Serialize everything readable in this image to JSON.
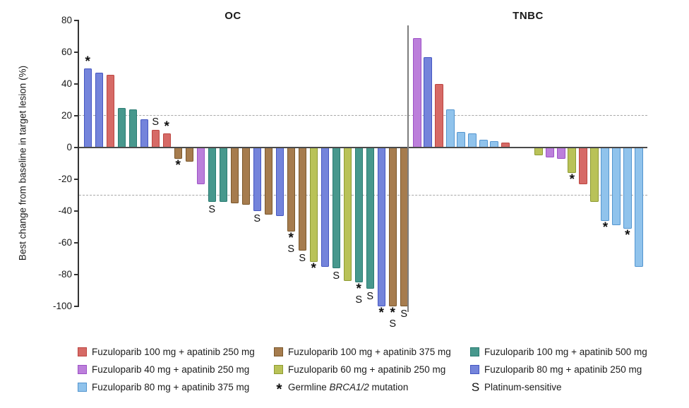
{
  "chart_data": {
    "type": "bar",
    "ylabel": "Best change from baseline in target lesion (%)",
    "ylim": [
      -100,
      80
    ],
    "yticks": [
      80,
      60,
      40,
      20,
      0,
      -20,
      -40,
      -60,
      -80,
      -100
    ],
    "reference_lines_pct": [
      20,
      -30
    ],
    "grid": false,
    "legend_position": "bottom",
    "palette": {
      "red": {
        "fill": "#D66A66",
        "stroke": "#BC4540"
      },
      "brown": {
        "fill": "#A67C4E",
        "stroke": "#7A572B"
      },
      "teal": {
        "fill": "#47988D",
        "stroke": "#2A7C72"
      },
      "orchid": {
        "fill": "#BC7FDB",
        "stroke": "#9D52C6"
      },
      "olive": {
        "fill": "#B9C258",
        "stroke": "#8E9B33"
      },
      "slateblue": {
        "fill": "#7484DB",
        "stroke": "#4456C1"
      },
      "lightblue": {
        "fill": "#90C3EC",
        "stroke": "#5395CF"
      }
    },
    "series_labels": {
      "red": "Fuzuloparib 100 mg + apatinib 250 mg",
      "brown": "Fuzuloparib 100 mg + apatinib 375 mg",
      "teal": "Fuzuloparib 100 mg + apatinib 500 mg",
      "orchid": "Fuzuloparib 40 mg + apatinib 250 mg",
      "olive": "Fuzuloparib 60 mg + apatinib 250 mg",
      "slateblue": "Fuzuloparib 80 mg + apatinib 250 mg",
      "lightblue": "Fuzuloparib 80 mg + apatinib 375 mg"
    },
    "marker_legend": {
      "asterisk_symbol": "*",
      "asterisk_pre": "Germline ",
      "asterisk_italic": "BRCA1/2",
      "asterisk_post": " mutation",
      "s_symbol": "S",
      "s_label": "Platinum-sensitive"
    },
    "legend_rows": [
      [
        "red",
        "brown",
        "teal"
      ],
      [
        "orchid",
        "olive",
        "slateblue"
      ],
      [
        "lightblue",
        "asterisk",
        "s"
      ]
    ],
    "groups": [
      {
        "name": "OC",
        "bars": [
          {
            "value": 50,
            "color": "slateblue",
            "markers": [
              "*"
            ]
          },
          {
            "value": 47,
            "color": "slateblue"
          },
          {
            "value": 46,
            "color": "red"
          },
          {
            "value": 25,
            "color": "teal"
          },
          {
            "value": 24,
            "color": "teal"
          },
          {
            "value": 18,
            "color": "slateblue"
          },
          {
            "value": 11,
            "color": "red",
            "markers": [
              "S"
            ]
          },
          {
            "value": 9,
            "color": "red",
            "markers": [
              "*"
            ]
          },
          {
            "value": -7,
            "color": "brown",
            "markers": [
              "*"
            ]
          },
          {
            "value": -9,
            "color": "brown"
          },
          {
            "value": -23,
            "color": "orchid"
          },
          {
            "value": -34,
            "color": "teal",
            "markers": [
              "S"
            ]
          },
          {
            "value": -34,
            "color": "teal"
          },
          {
            "value": -35,
            "color": "brown"
          },
          {
            "value": -36,
            "color": "brown"
          },
          {
            "value": -40,
            "color": "slateblue",
            "markers": [
              "S"
            ]
          },
          {
            "value": -42,
            "color": "brown"
          },
          {
            "value": -43,
            "color": "slateblue"
          },
          {
            "value": -53,
            "color": "brown",
            "markers": [
              "*",
              "S"
            ]
          },
          {
            "value": -65,
            "color": "brown",
            "markers": [
              "S"
            ]
          },
          {
            "value": -72,
            "color": "olive",
            "markers": [
              "*"
            ]
          },
          {
            "value": -75,
            "color": "slateblue"
          },
          {
            "value": -76,
            "color": "teal",
            "markers": [
              "S"
            ]
          },
          {
            "value": -84,
            "color": "olive"
          },
          {
            "value": -85,
            "color": "teal",
            "markers": [
              "*",
              "S"
            ]
          },
          {
            "value": -89,
            "color": "teal",
            "markers": [
              "S"
            ]
          },
          {
            "value": -100,
            "color": "slateblue",
            "markers": [
              "*"
            ]
          },
          {
            "value": -100,
            "color": "brown",
            "markers": [
              "*",
              "S"
            ]
          },
          {
            "value": -100,
            "color": "brown",
            "markers": [
              "S"
            ]
          }
        ]
      },
      {
        "name": "TNBC",
        "bars": [
          {
            "value": 69,
            "color": "orchid"
          },
          {
            "value": 57,
            "color": "slateblue"
          },
          {
            "value": 40,
            "color": "red"
          },
          {
            "value": 24,
            "color": "lightblue"
          },
          {
            "value": 10,
            "color": "lightblue"
          },
          {
            "value": 9,
            "color": "lightblue"
          },
          {
            "value": 5,
            "color": "lightblue"
          },
          {
            "value": 4,
            "color": "lightblue"
          },
          {
            "value": 3,
            "color": "red"
          },
          {
            "value": 0,
            "spacer": true
          },
          {
            "value": 0,
            "spacer": true
          },
          {
            "value": -5,
            "color": "olive"
          },
          {
            "value": -6,
            "color": "orchid"
          },
          {
            "value": -7,
            "color": "orchid"
          },
          {
            "value": -16,
            "color": "olive",
            "markers": [
              "*"
            ]
          },
          {
            "value": -23,
            "color": "red"
          },
          {
            "value": -34,
            "color": "olive"
          },
          {
            "value": -46,
            "color": "lightblue",
            "markers": [
              "*"
            ]
          },
          {
            "value": -49,
            "color": "lightblue"
          },
          {
            "value": -51,
            "color": "lightblue",
            "markers": [
              "*"
            ]
          },
          {
            "value": -75,
            "color": "lightblue"
          }
        ]
      }
    ]
  }
}
